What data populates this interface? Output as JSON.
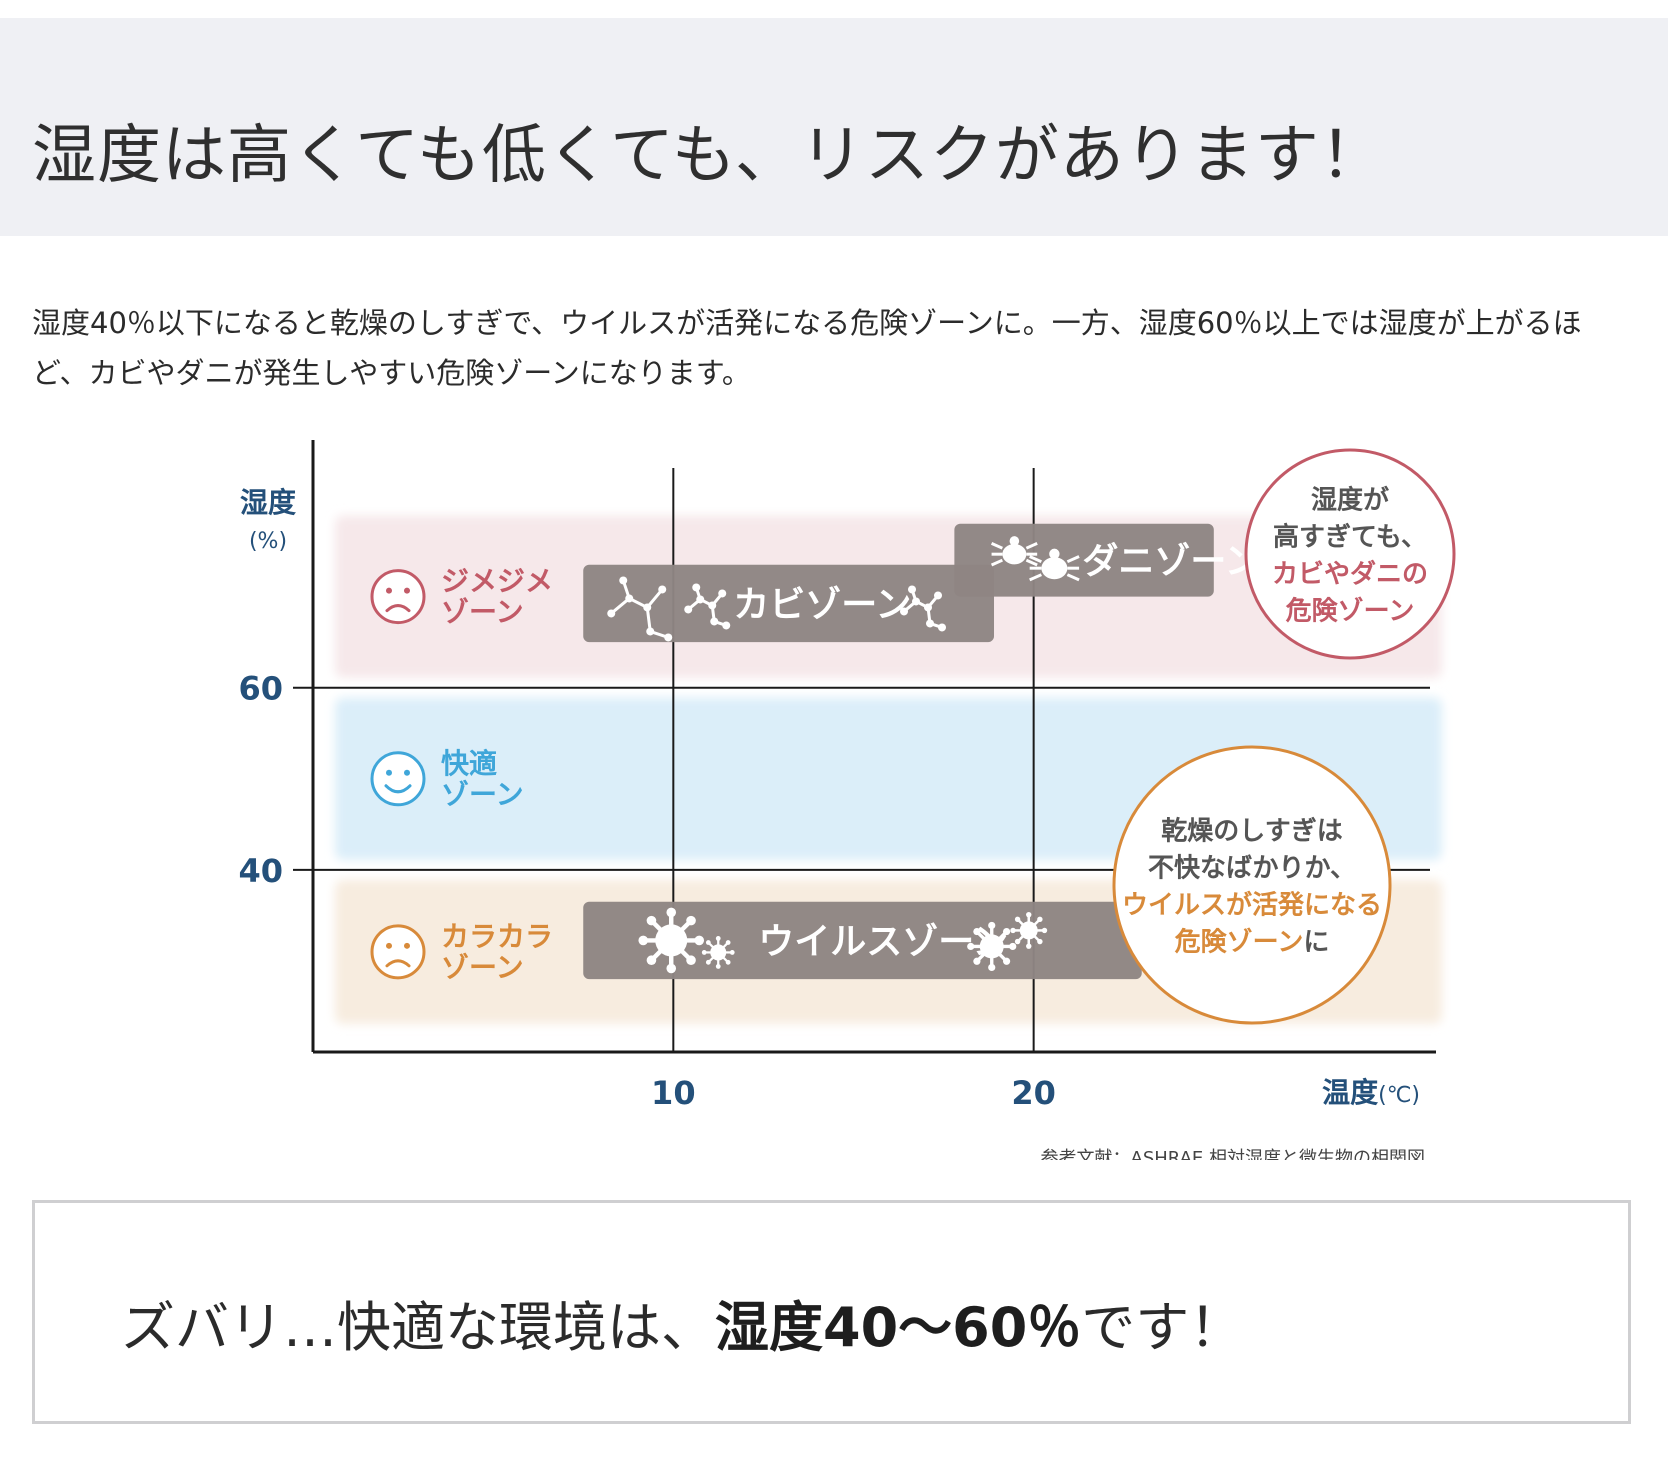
{
  "header": {
    "title": "湿度は高くても低くても、リスクがあります！"
  },
  "intro": {
    "line1": "湿度40％以下になると乾燥のしすぎで、ウイルスが活発になる危険ゾーンに。一方、湿度60％以上では湿度が上がるほ",
    "line2": "ど、カビやダニが発生しやすい危険ゾーンになります。"
  },
  "chart_data": {
    "type": "area",
    "ylabel": "湿度",
    "ylabel_unit": "(%)",
    "xlabel": "温度",
    "xlabel_unit": "(℃)",
    "x_ticks": [
      10,
      20
    ],
    "y_ticks": [
      40,
      60
    ],
    "xlim": [
      0,
      31
    ],
    "ylim": [
      20,
      85
    ],
    "grid": true,
    "zones": [
      {
        "name": "ジメジメゾーン",
        "label_lines": [
          "ジメジメ",
          "ゾーン"
        ],
        "y_range": [
          60,
          80
        ],
        "face": "sad",
        "color": "#c25a67",
        "fill": "#f6e8ea"
      },
      {
        "name": "快適ゾーン",
        "label_lines": [
          "快適",
          "ゾーン"
        ],
        "y_range": [
          40,
          60
        ],
        "face": "smile",
        "color": "#3fa6d9",
        "fill": "#dbeef9"
      },
      {
        "name": "カラカラゾーン",
        "label_lines": [
          "カラカラ",
          "ゾーン"
        ],
        "y_range": [
          22,
          40
        ],
        "face": "sad",
        "color": "#d88a3a",
        "fill": "#f7ecdf"
      }
    ],
    "bars": [
      {
        "name": "カビゾーン",
        "label": "カビゾーン",
        "x_range": [
          7.5,
          18.9
        ],
        "y_range": [
          65,
          73.5
        ],
        "icon": "mold"
      },
      {
        "name": "ダニゾーン",
        "label": "ダニゾーン",
        "x_range": [
          17.8,
          25
        ],
        "y_range": [
          70,
          78
        ],
        "icon": "mite"
      },
      {
        "name": "ウイルスゾーン",
        "label": "ウイルスゾーン",
        "x_range": [
          7.5,
          23
        ],
        "y_range": [
          28,
          36.5
        ],
        "icon": "virus"
      }
    ],
    "callouts": [
      {
        "name": "high-humidity-callout",
        "ring_color": "#c25a67",
        "lines": [
          {
            "text": "湿度が",
            "color": "#555555"
          },
          {
            "text": "高すぎても、",
            "color": "#555555"
          },
          {
            "text": "カビやダニの",
            "color": "#c25a67"
          },
          {
            "text": "危険ゾーン",
            "color": "#c25a67"
          }
        ]
      },
      {
        "name": "low-humidity-callout",
        "ring_color": "#d88a3a",
        "lines": [
          {
            "text": "乾燥のしすぎは",
            "color": "#555555"
          },
          {
            "text": "不快なばかりか、",
            "color": "#555555"
          },
          {
            "text": "ウイルスが活発になる",
            "color": "#d88a3a"
          },
          {
            "text": "危険ゾーン",
            "color": "#d88a3a",
            "suffix": "に",
            "suffix_color": "#555555"
          }
        ]
      }
    ],
    "source": "参考文献：ASHRAE 相対湿度と微生物の相関図"
  },
  "answer": {
    "prefix": "ズバリ…快適な環境は、",
    "highlight": "湿度40〜60％",
    "suffix": "です！"
  },
  "colors": {
    "axis_blue": "#24507a",
    "bar_gray": "#8e8583",
    "hero_bg": "#eff0f4",
    "box_border": "#cfcfd1"
  }
}
